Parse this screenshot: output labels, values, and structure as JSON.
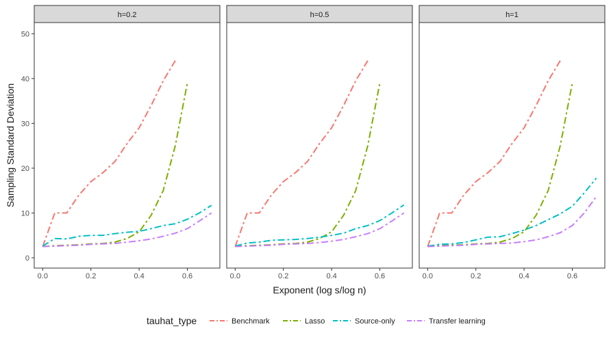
{
  "chart_data": {
    "type": "line",
    "facet_variable": "h",
    "xlabel": "Exponent (log s/log n)",
    "ylabel": "Sampling Standard Deviation",
    "xlim": [
      -0.035,
      0.735
    ],
    "ylim": [
      -2.3,
      52.5
    ],
    "x_ticks": [
      0.0,
      0.2,
      0.4,
      0.6
    ],
    "x_tick_labels": [
      "0.0",
      "0.2",
      "0.4",
      "0.6"
    ],
    "y_ticks": [
      0,
      10,
      20,
      30,
      40,
      50
    ],
    "y_tick_labels": [
      "0",
      "10",
      "20",
      "30",
      "40",
      "50"
    ],
    "grid": false,
    "legend": {
      "title": "tauhat_type",
      "position": "bottom",
      "entries": [
        "Benchmark",
        "Lasso",
        "Source-only",
        "Transfer learning"
      ]
    },
    "series_colors": {
      "Benchmark": "#F8766D",
      "Lasso": "#7CAE00",
      "Source-only": "#00BFC4",
      "Transfer learning": "#C77CFF"
    },
    "panels": [
      {
        "label": "h=0.2",
        "series": [
          {
            "name": "Benchmark",
            "x": [
              0,
              0.05,
              0.1,
              0.15,
              0.2,
              0.25,
              0.3,
              0.35,
              0.4,
              0.45,
              0.5,
              0.55
            ],
            "values": [
              2.5,
              10,
              10,
              14,
              17,
              19,
              21.5,
              25.5,
              29,
              34,
              39.5,
              44
            ]
          },
          {
            "name": "Lasso",
            "x": [
              0,
              0.05,
              0.1,
              0.15,
              0.2,
              0.25,
              0.3,
              0.35,
              0.4,
              0.45,
              0.5,
              0.55,
              0.6
            ],
            "values": [
              2.5,
              2.7,
              2.8,
              2.9,
              3.1,
              3.2,
              3.5,
              4.3,
              5.8,
              9.5,
              15,
              25,
              39
            ]
          },
          {
            "name": "Source-only",
            "x": [
              0,
              0.05,
              0.1,
              0.15,
              0.2,
              0.25,
              0.3,
              0.35,
              0.4,
              0.45,
              0.5,
              0.55,
              0.6,
              0.65,
              0.7
            ],
            "values": [
              2.6,
              4.3,
              4.2,
              4.8,
              5.0,
              5.0,
              5.4,
              5.7,
              5.9,
              6.5,
              7.2,
              7.6,
              8.6,
              10.0,
              11.7
            ]
          },
          {
            "name": "Transfer learning",
            "x": [
              0,
              0.05,
              0.1,
              0.15,
              0.2,
              0.25,
              0.3,
              0.35,
              0.4,
              0.45,
              0.5,
              0.55,
              0.6,
              0.65,
              0.7
            ],
            "values": [
              2.5,
              2.6,
              2.7,
              2.8,
              3.0,
              3.1,
              3.2,
              3.5,
              3.8,
              4.2,
              4.8,
              5.5,
              6.5,
              8.2,
              10.0
            ]
          }
        ]
      },
      {
        "label": "h=0.5",
        "series": [
          {
            "name": "Benchmark",
            "x": [
              0,
              0.05,
              0.1,
              0.15,
              0.2,
              0.25,
              0.3,
              0.35,
              0.4,
              0.45,
              0.5,
              0.55
            ],
            "values": [
              2.5,
              10,
              10,
              14,
              17,
              19,
              21.5,
              25.5,
              29,
              34,
              39.5,
              44
            ]
          },
          {
            "name": "Lasso",
            "x": [
              0,
              0.05,
              0.1,
              0.15,
              0.2,
              0.25,
              0.3,
              0.35,
              0.4,
              0.45,
              0.5,
              0.55,
              0.6
            ],
            "values": [
              2.5,
              2.7,
              2.8,
              2.9,
              3.1,
              3.2,
              3.5,
              4.3,
              5.8,
              9.5,
              15,
              25,
              39
            ]
          },
          {
            "name": "Source-only",
            "x": [
              0,
              0.05,
              0.1,
              0.15,
              0.2,
              0.25,
              0.3,
              0.35,
              0.4,
              0.45,
              0.5,
              0.55,
              0.6,
              0.65,
              0.7
            ],
            "values": [
              2.6,
              3.3,
              3.5,
              3.9,
              4.0,
              4.1,
              4.3,
              4.6,
              5.0,
              5.5,
              6.5,
              7.2,
              8.3,
              10.0,
              11.8
            ]
          },
          {
            "name": "Transfer learning",
            "x": [
              0,
              0.05,
              0.1,
              0.15,
              0.2,
              0.25,
              0.3,
              0.35,
              0.4,
              0.45,
              0.5,
              0.55,
              0.6,
              0.65,
              0.7
            ],
            "values": [
              2.5,
              2.6,
              2.7,
              2.8,
              3.0,
              3.1,
              3.2,
              3.4,
              3.7,
              4.1,
              4.7,
              5.4,
              6.5,
              8.2,
              10.0
            ]
          }
        ]
      },
      {
        "label": "h=1",
        "series": [
          {
            "name": "Benchmark",
            "x": [
              0,
              0.05,
              0.1,
              0.15,
              0.2,
              0.25,
              0.3,
              0.35,
              0.4,
              0.45,
              0.5,
              0.55
            ],
            "values": [
              2.5,
              10,
              10,
              14,
              17,
              19,
              21.5,
              25.5,
              29,
              34,
              39.5,
              44
            ]
          },
          {
            "name": "Lasso",
            "x": [
              0,
              0.05,
              0.1,
              0.15,
              0.2,
              0.25,
              0.3,
              0.35,
              0.4,
              0.45,
              0.5,
              0.55,
              0.6
            ],
            "values": [
              2.5,
              2.7,
              2.8,
              2.9,
              3.1,
              3.2,
              3.5,
              4.3,
              5.8,
              9.5,
              15,
              25,
              39
            ]
          },
          {
            "name": "Source-only",
            "x": [
              0,
              0.05,
              0.1,
              0.15,
              0.2,
              0.25,
              0.3,
              0.35,
              0.4,
              0.45,
              0.5,
              0.55,
              0.6,
              0.65,
              0.7
            ],
            "values": [
              2.6,
              3.0,
              3.1,
              3.4,
              4.0,
              4.6,
              4.7,
              5.4,
              6.2,
              7.2,
              8.5,
              9.8,
              11.5,
              14.5,
              17.8
            ]
          },
          {
            "name": "Transfer learning",
            "x": [
              0,
              0.05,
              0.1,
              0.15,
              0.2,
              0.25,
              0.3,
              0.35,
              0.4,
              0.45,
              0.5,
              0.55,
              0.6,
              0.65,
              0.7
            ],
            "values": [
              2.5,
              2.6,
              2.7,
              2.8,
              3.0,
              3.1,
              3.2,
              3.3,
              3.6,
              4.0,
              4.7,
              5.6,
              7.2,
              10.0,
              13.7
            ]
          }
        ]
      }
    ]
  }
}
